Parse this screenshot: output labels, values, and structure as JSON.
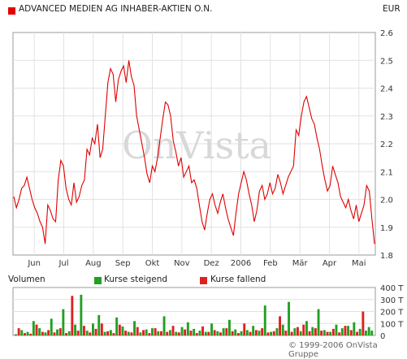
{
  "header": {
    "security_name": "ADVANCED MEDIEN AG INHABER-AKTIEN O.N.",
    "currency": "EUR",
    "marker_color": "#e60000"
  },
  "watermark": "OnVista",
  "volume_legend": {
    "title": "Volumen",
    "rising": "Kurse steigend",
    "falling": "Kurse fallend",
    "rising_color": "#22a022",
    "falling_color": "#e02020"
  },
  "copyright": "© 1999-2006 OnVista Gruppe",
  "chart_data": [
    {
      "type": "line",
      "x_tick_labels": [
        "Jun",
        "Jul",
        "Aug",
        "Sep",
        "Okt",
        "Nov",
        "Dez",
        "2006",
        "Feb",
        "Mär",
        "Apr",
        "Mai"
      ],
      "ylim": [
        1.8,
        2.6
      ],
      "y_ticks": [
        "1.8",
        "1.9",
        "2.0",
        "2.1",
        "2.2",
        "2.3",
        "2.4",
        "2.5",
        "2.6"
      ],
      "grid": true,
      "line_color": "#e00000",
      "series": [
        {
          "values": [
            2.01,
            1.97,
            2.0,
            2.04,
            2.05,
            2.08,
            2.04,
            2.0,
            1.97,
            1.95,
            1.92,
            1.9,
            1.84,
            1.98,
            1.96,
            1.93,
            1.92,
            2.07,
            2.14,
            2.12,
            2.04,
            2.0,
            1.98,
            2.06,
            1.99,
            2.01,
            2.05,
            2.07,
            2.18,
            2.16,
            2.22,
            2.2,
            2.27,
            2.15,
            2.18,
            2.3,
            2.42,
            2.47,
            2.45,
            2.35,
            2.43,
            2.46,
            2.48,
            2.42,
            2.5,
            2.44,
            2.41,
            2.3,
            2.25,
            2.2,
            2.15,
            2.09,
            2.06,
            2.12,
            2.1,
            2.15,
            2.22,
            2.29,
            2.35,
            2.34,
            2.3,
            2.21,
            2.17,
            2.12,
            2.15,
            2.08,
            2.1,
            2.12,
            2.06,
            2.07,
            2.04,
            1.98,
            1.92,
            1.89,
            1.95,
            2.0,
            2.02,
            1.98,
            1.95,
            1.99,
            2.02,
            1.97,
            1.93,
            1.9,
            1.87,
            1.95,
            2.02,
            2.06,
            2.1,
            2.07,
            2.02,
            1.98,
            1.92,
            1.96,
            2.03,
            2.05,
            2.0,
            2.02,
            2.06,
            2.02,
            2.04,
            2.09,
            2.06,
            2.02,
            2.05,
            2.08,
            2.1,
            2.12,
            2.25,
            2.23,
            2.3,
            2.35,
            2.37,
            2.33,
            2.29,
            2.27,
            2.22,
            2.18,
            2.12,
            2.07,
            2.03,
            2.05,
            2.12,
            2.09,
            2.06,
            2.01,
            1.99,
            1.97,
            2.0,
            1.96,
            1.93,
            1.98,
            1.92,
            1.95,
            1.98,
            2.05,
            2.03,
            1.93,
            1.84
          ]
        }
      ]
    },
    {
      "type": "bar",
      "title": "Volumen",
      "ylim": [
        0,
        400000
      ],
      "y_ticks": [
        "0",
        "100 T",
        "200 T",
        "300 T",
        "400 T"
      ],
      "series": [
        {
          "name": "Kurse steigend",
          "values": [
            10000,
            45000,
            30000,
            120000,
            60000,
            25000,
            140000,
            50000,
            220000,
            35000,
            90000,
            340000,
            40000,
            100000,
            170000,
            30000,
            45000,
            150000,
            75000,
            30000,
            120000,
            25000,
            50000,
            60000,
            35000,
            160000,
            45000,
            30000,
            70000,
            110000,
            55000,
            40000,
            30000,
            100000,
            35000,
            60000,
            130000,
            50000,
            35000,
            45000,
            80000,
            40000,
            250000,
            30000,
            60000,
            90000,
            280000,
            60000,
            35000,
            120000,
            70000,
            220000,
            45000,
            30000,
            90000,
            60000,
            80000,
            110000,
            55000,
            40000,
            70000,
            40000
          ]
        },
        {
          "name": "Kurse fallend",
          "values": [
            60000,
            20000,
            15000,
            90000,
            30000,
            45000,
            25000,
            60000,
            20000,
            330000,
            40000,
            80000,
            25000,
            55000,
            100000,
            35000,
            20000,
            90000,
            40000,
            25000,
            70000,
            45000,
            20000,
            60000,
            35000,
            30000,
            80000,
            25000,
            50000,
            40000,
            20000,
            75000,
            30000,
            45000,
            25000,
            60000,
            35000,
            20000,
            100000,
            30000,
            45000,
            60000,
            25000,
            35000,
            160000,
            40000,
            30000,
            70000,
            90000,
            35000,
            60000,
            40000,
            30000,
            55000,
            25000,
            80000,
            45000,
            30000,
            200000
          ]
        }
      ]
    }
  ]
}
